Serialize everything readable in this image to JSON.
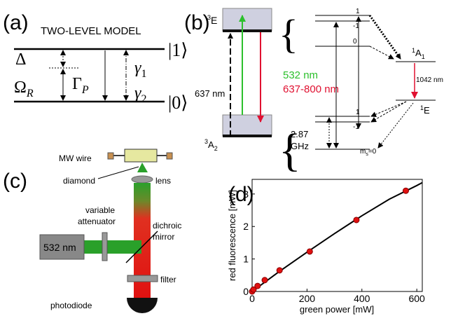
{
  "panel_a": {
    "label": "(a)",
    "title": "TWO-LEVEL MODEL",
    "delta": "Δ",
    "omega": {
      "symbol": "Ω",
      "sub": "R"
    },
    "gamma_p": {
      "symbol": "Γ",
      "sub": "P"
    },
    "gamma1": {
      "symbol": "γ",
      "sub": "1"
    },
    "gamma2": {
      "symbol": "γ",
      "sub": "2"
    },
    "upper": "|1⟩",
    "lower": "|0⟩"
  },
  "panel_b": {
    "label": "(b)",
    "excited": {
      "sup": "3",
      "name": "E"
    },
    "ground": {
      "sup": "3",
      "name": "A",
      "sub": "2"
    },
    "red_zpl": "637 nm",
    "green": "532 nm",
    "red_band": "637-800 nm",
    "excited_levels": [
      "1",
      "-1",
      "0"
    ],
    "singlet_upper": {
      "sup": "1",
      "name": "A",
      "sub": "1"
    },
    "ir": "1042 nm",
    "singlet_lower": {
      "sup": "1",
      "name": "E"
    },
    "ground_levels": [
      "1",
      "-1"
    ],
    "splitting": [
      "2.87",
      "GHz"
    ],
    "ms0": {
      "name": "m",
      "sub": "s",
      "rest": "=0"
    }
  },
  "panel_c": {
    "label": "(c)",
    "mw_wire": "MW wire",
    "diamond": "diamond",
    "lens": "lens",
    "attenuator": [
      "variable",
      "attenuator"
    ],
    "dichroic": [
      "dichroic",
      "mirror"
    ],
    "laser": "532 nm",
    "filter": "filter",
    "photodiode": "photodiode"
  },
  "chart_data": {
    "type": "scatter",
    "label": "(d)",
    "xlabel": "green power [mW]",
    "ylabel": "red fluorescence [mW]",
    "xlim": [
      0,
      620
    ],
    "ylim": [
      0,
      3.45
    ],
    "xticks": [
      0,
      200,
      400,
      600
    ],
    "yticks": [
      0,
      1,
      2,
      3
    ],
    "grid": false,
    "points": {
      "color": "#e01010",
      "x": [
        0,
        5,
        20,
        46,
        100,
        210,
        380,
        560
      ],
      "values": [
        0,
        0.06,
        0.17,
        0.35,
        0.65,
        1.23,
        2.2,
        3.1
      ]
    },
    "fit": {
      "color": "#000000",
      "x": [
        0,
        100,
        200,
        300,
        400,
        500,
        600,
        620
      ],
      "values": [
        0,
        0.62,
        1.21,
        1.78,
        2.33,
        2.84,
        3.26,
        3.35
      ]
    }
  }
}
